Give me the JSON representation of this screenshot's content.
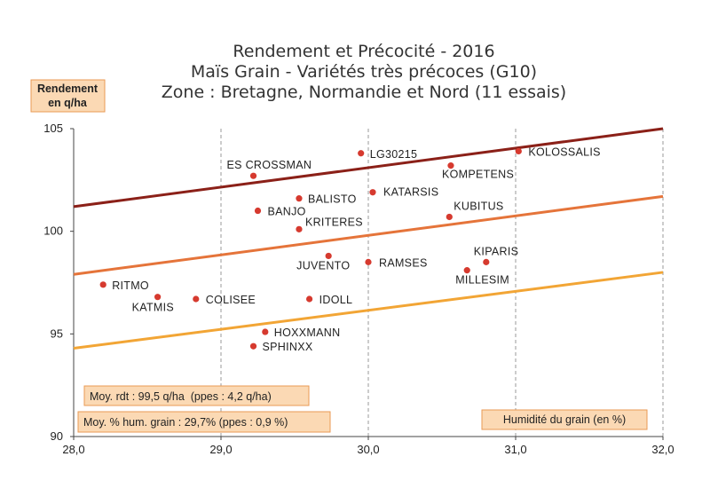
{
  "chart_data": {
    "type": "scatter",
    "title": [
      "Rendement et Précocité - 2016",
      "Maïs Grain - Variétés très précoces (G10)",
      "Zone : Bretagne, Normandie et Nord (11 essais)"
    ],
    "ylabel": [
      "Rendement",
      "en q/ha"
    ],
    "xlabel": "Humidité du grain (en %)",
    "xlim": [
      28.0,
      32.0
    ],
    "ylim": [
      90,
      105
    ],
    "x_ticks": [
      28.0,
      29.0,
      30.0,
      31.0,
      32.0
    ],
    "x_tick_labels": [
      "28,0",
      "29,0",
      "30,0",
      "31,0",
      "32,0"
    ],
    "y_ticks": [
      90,
      95,
      100,
      105
    ],
    "y_tick_labels": [
      "90",
      "95",
      "100",
      "105"
    ],
    "grid": "vertical dashed",
    "points": [
      {
        "name": "LG30215",
        "x": 29.95,
        "y": 103.8
      },
      {
        "name": "KOLOSSALIS",
        "x": 31.02,
        "y": 103.9
      },
      {
        "name": "ES CROSSMAN",
        "x": 29.22,
        "y": 102.7
      },
      {
        "name": "KOMPETENS",
        "x": 30.56,
        "y": 103.2
      },
      {
        "name": "KATARSIS",
        "x": 30.03,
        "y": 101.9
      },
      {
        "name": "BALISTO",
        "x": 29.53,
        "y": 101.6
      },
      {
        "name": "BANJO",
        "x": 29.25,
        "y": 101.0
      },
      {
        "name": "KUBITUS",
        "x": 30.55,
        "y": 100.7
      },
      {
        "name": "KRITERES",
        "x": 29.53,
        "y": 100.1
      },
      {
        "name": "JUVENTO",
        "x": 29.73,
        "y": 98.8
      },
      {
        "name": "RAMSES",
        "x": 30.0,
        "y": 98.5
      },
      {
        "name": "KIPARIS",
        "x": 30.8,
        "y": 98.5
      },
      {
        "name": "MILLESIM",
        "x": 30.67,
        "y": 98.1
      },
      {
        "name": "RITMO",
        "x": 28.2,
        "y": 97.4
      },
      {
        "name": "KATMIS",
        "x": 28.57,
        "y": 96.8
      },
      {
        "name": "COLISEE",
        "x": 28.83,
        "y": 96.7
      },
      {
        "name": "IDOLL",
        "x": 29.6,
        "y": 96.7
      },
      {
        "name": "HOXXMANN",
        "x": 29.3,
        "y": 95.1
      },
      {
        "name": "SPHINXX",
        "x": 29.22,
        "y": 94.4
      }
    ],
    "trend_lines": [
      {
        "name": "upper",
        "color": "#8b2018",
        "y_at_xmin": 101.2,
        "y_at_xmax": 105.0
      },
      {
        "name": "mean",
        "color": "#e5743a",
        "y_at_xmin": 97.9,
        "y_at_xmax": 101.7
      },
      {
        "name": "lower",
        "color": "#f2a535",
        "y_at_xmin": 94.3,
        "y_at_xmax": 98.0
      }
    ],
    "annotations": [
      "Moy. rdt : 99,5 q/ha  (ppes : 4,2 q/ha)",
      "Moy. % hum. grain : 29,7% (ppes : 0,9 %)"
    ]
  },
  "colors": {
    "point": "#d63a2f",
    "label_box_fill": "#fbd9b4",
    "label_box_border": "#e89a55",
    "grid": "#9a9a9a",
    "axis": "#444444"
  }
}
